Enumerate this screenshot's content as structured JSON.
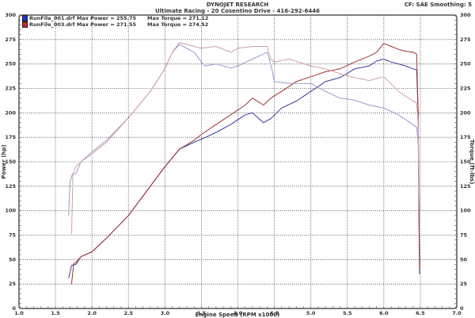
{
  "header": {
    "title": "DYNOJET RESEARCH",
    "subtitle": "Ultimate Racing - 20 Cosentino Drive - 416-292-6446",
    "correction": "CF: SAE  Smoothing: 5"
  },
  "legend": [
    {
      "file": "RunFile_001.drf",
      "max_power_label": "Max Power = 255.75",
      "max_torque_label": "Max Torque = 271.12",
      "color": "#2a2ad0"
    },
    {
      "file": "RunFile_003.drf",
      "max_power_label": "Max Power = 271.55",
      "max_torque_label": "Max Torque = 274.52",
      "color": "#d02020"
    }
  ],
  "chart_data": {
    "type": "line",
    "title": "DYNOJET RESEARCH",
    "subtitle": "Ultimate Racing - 20 Cosentino Drive - 416-292-6446",
    "xlabel": "Engine Speed (RPM x1000)",
    "ylabel": "Power (hp)",
    "y2label": "Torque (ft-lbs)",
    "xlim": [
      1.0,
      7.0
    ],
    "ylim": [
      0,
      300
    ],
    "y2lim": [
      0,
      300
    ],
    "xticks": [
      "1.0",
      "1.5",
      "2.0",
      "2.5",
      "3.0",
      "3.5",
      "4.0",
      "4.5",
      "5.0",
      "5.5",
      "6.0",
      "6.5",
      "7.0"
    ],
    "yticks": [
      "0",
      "25",
      "50",
      "75",
      "100",
      "125",
      "150",
      "175",
      "200",
      "225",
      "250",
      "275",
      "300"
    ],
    "grid": true,
    "legend_position": "top-left",
    "series": [
      {
        "name": "RunFile_001.drf Power",
        "axis": "left",
        "color": "#3a3a9a",
        "x": [
          1.68,
          1.72,
          1.78,
          1.85,
          2.0,
          2.2,
          2.5,
          2.8,
          3.0,
          3.2,
          3.4,
          3.5,
          3.7,
          3.9,
          4.1,
          4.2,
          4.35,
          4.45,
          4.6,
          4.8,
          5.0,
          5.2,
          5.4,
          5.6,
          5.8,
          5.9,
          6.0,
          6.1,
          6.2,
          6.3,
          6.4,
          6.45,
          6.47,
          6.48,
          6.49
        ],
        "y": [
          31,
          44,
          45,
          53,
          58,
          72,
          95,
          125,
          145,
          163,
          170,
          173,
          180,
          188,
          198,
          200,
          190,
          194,
          205,
          212,
          222,
          232,
          236,
          245,
          248,
          253,
          255,
          252,
          250,
          248,
          245,
          244,
          200,
          100,
          35
        ]
      },
      {
        "name": "RunFile_003.drf Power",
        "axis": "left",
        "color": "#a03030",
        "x": [
          1.72,
          1.75,
          1.78,
          1.85,
          2.0,
          2.2,
          2.5,
          2.8,
          3.0,
          3.2,
          3.4,
          3.5,
          3.7,
          3.9,
          4.1,
          4.2,
          4.35,
          4.45,
          4.6,
          4.8,
          5.0,
          5.2,
          5.4,
          5.6,
          5.8,
          5.9,
          6.0,
          6.1,
          6.2,
          6.3,
          6.4,
          6.45,
          6.47,
          6.48,
          6.49
        ],
        "y": [
          25,
          46,
          47,
          53,
          58,
          72,
          95,
          125,
          145,
          163,
          172,
          178,
          188,
          198,
          208,
          215,
          208,
          215,
          222,
          232,
          237,
          242,
          245,
          252,
          258,
          262,
          271,
          268,
          265,
          263,
          262,
          260,
          200,
          110,
          40
        ]
      },
      {
        "name": "RunFile_001.drf Torque",
        "axis": "right",
        "color": "#9a9ad0",
        "x": [
          1.68,
          1.7,
          1.73,
          1.78,
          1.85,
          2.0,
          2.2,
          2.5,
          2.8,
          3.0,
          3.1,
          3.2,
          3.4,
          3.5,
          3.55,
          3.7,
          3.9,
          4.0,
          4.2,
          4.4,
          4.45,
          4.5,
          4.7,
          5.0,
          5.2,
          5.4,
          5.6,
          5.8,
          6.0,
          6.2,
          6.4,
          6.45,
          6.47,
          6.48,
          6.49
        ],
        "y": [
          95,
          130,
          137,
          138,
          150,
          160,
          172,
          195,
          222,
          245,
          262,
          270,
          262,
          252,
          248,
          250,
          246,
          248,
          255,
          262,
          250,
          232,
          230,
          230,
          222,
          215,
          213,
          208,
          205,
          198,
          188,
          185,
          170,
          120,
          100
        ]
      },
      {
        "name": "RunFile_003.drf Torque",
        "axis": "right",
        "color": "#d0a0a0",
        "x": [
          1.72,
          1.74,
          1.78,
          1.85,
          2.0,
          2.2,
          2.5,
          2.8,
          3.0,
          3.1,
          3.2,
          3.4,
          3.5,
          3.7,
          3.9,
          4.0,
          4.2,
          4.4,
          4.45,
          4.5,
          4.7,
          5.0,
          5.2,
          5.4,
          5.6,
          5.8,
          6.0,
          6.2,
          6.4,
          6.45,
          6.47,
          6.48,
          6.49
        ],
        "y": [
          76,
          138,
          145,
          150,
          158,
          170,
          195,
          222,
          245,
          262,
          272,
          268,
          266,
          268,
          262,
          266,
          268,
          268,
          255,
          252,
          255,
          248,
          245,
          240,
          236,
          233,
          237,
          222,
          212,
          210,
          190,
          150,
          100
        ]
      }
    ]
  }
}
